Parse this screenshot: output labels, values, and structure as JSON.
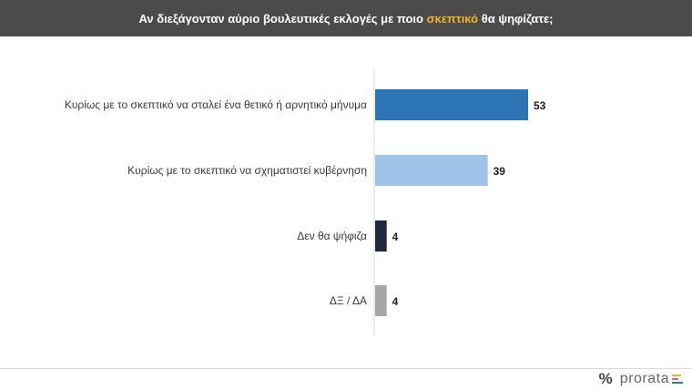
{
  "header": {
    "title_before": "Αν διεξάγονταν αύριο βουλευτικές εκλογές με ποιο ",
    "title_highlight": "σκεπτικό",
    "title_after": " θα ψηφίζατε;",
    "highlight_color": "#f2b51f"
  },
  "chart_data": {
    "type": "bar",
    "orientation": "horizontal",
    "categories": [
      "Κυρίως με το σκεπτικό να σταλεί ένα θετικό ή αρνητικό μήνυμα",
      "Κυρίως με το σκεπτικό να σχηματιστεί κυβέρνηση",
      "Δεν θα ψήφιζα",
      "ΔΞ / ΔΑ"
    ],
    "values": [
      53,
      39,
      4,
      4
    ],
    "value_labels": [
      "53",
      "39",
      "4",
      "4"
    ],
    "colors": [
      "#2e75b6",
      "#9dc3e6",
      "#1f2a3c",
      "#a6a6a6"
    ],
    "xlim": [
      0,
      60
    ],
    "grid": false,
    "legend": "none"
  },
  "logo": {
    "symbol": "%",
    "text": "prorata",
    "bar_colors": [
      "#f2b51f",
      "#e05a87",
      "#2e75b6"
    ]
  }
}
